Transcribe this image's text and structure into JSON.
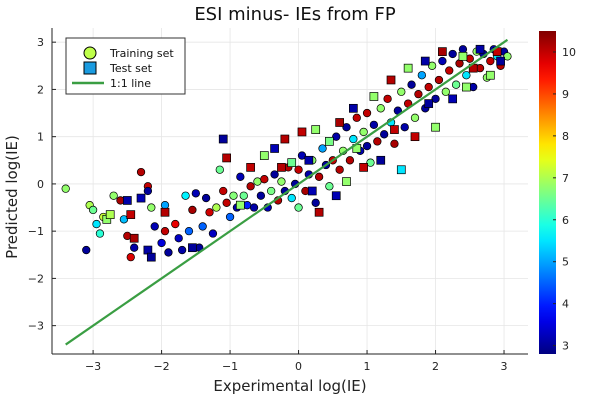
{
  "chart_data": {
    "type": "scatter",
    "title": "ESI minus- IEs from FP",
    "xlabel": "Experimental log(IE)",
    "ylabel": "Predicted log(IE)",
    "xlim": [
      -3.6,
      3.35
    ],
    "ylim": [
      -3.6,
      3.3
    ],
    "xticks": [
      -3,
      -2,
      -1,
      0,
      1,
      2,
      3
    ],
    "yticks": [
      -3,
      -2,
      -1,
      0,
      1,
      2,
      3
    ],
    "grid": true,
    "legend_position": "top-left",
    "colorbar": {
      "min": 2.8,
      "max": 10.5,
      "ticks": [
        3,
        4,
        5,
        6,
        7,
        8,
        9,
        10
      ],
      "colormap": "jet"
    },
    "series": [
      {
        "name": "Training set",
        "marker": "circle",
        "points": [
          [
            -3.4,
            -0.1,
            6.8
          ],
          [
            -3.05,
            -0.45,
            7.0
          ],
          [
            -3.0,
            -0.55,
            6.5
          ],
          [
            -2.95,
            -0.85,
            5.5
          ],
          [
            -2.9,
            -1.05,
            6.0
          ],
          [
            -2.85,
            -0.7,
            7.2
          ],
          [
            -3.1,
            -1.4,
            3.0
          ],
          [
            -2.7,
            -0.25,
            6.8
          ],
          [
            -2.6,
            -0.35,
            10.2
          ],
          [
            -2.55,
            -0.75,
            5.2
          ],
          [
            -2.5,
            -1.1,
            10.1
          ],
          [
            -2.45,
            -1.55,
            9.8
          ],
          [
            -2.4,
            -1.35,
            3.1
          ],
          [
            -2.3,
            0.25,
            10.1
          ],
          [
            -2.2,
            -0.05,
            10.0
          ],
          [
            -2.2,
            -0.15,
            3.0
          ],
          [
            -2.15,
            -0.5,
            6.8
          ],
          [
            -2.1,
            -0.9,
            3.2
          ],
          [
            -2.0,
            -1.25,
            3.5
          ],
          [
            -1.95,
            -0.45,
            5.0
          ],
          [
            -1.95,
            -1.0,
            10.0
          ],
          [
            -1.9,
            -1.45,
            3.0
          ],
          [
            -1.8,
            -0.85,
            9.7
          ],
          [
            -1.75,
            -1.15,
            3.3
          ],
          [
            -1.7,
            -1.4,
            3.1
          ],
          [
            -1.65,
            -0.25,
            5.6
          ],
          [
            -1.6,
            -1.0,
            4.5
          ],
          [
            -1.55,
            -0.55,
            10.2
          ],
          [
            -1.5,
            -0.2,
            3.2
          ],
          [
            -1.45,
            -1.35,
            3.0
          ],
          [
            -1.4,
            -0.9,
            4.5
          ],
          [
            -1.35,
            -0.3,
            3.0
          ],
          [
            -1.3,
            -0.6,
            9.9
          ],
          [
            -1.25,
            -1.05,
            3.3
          ],
          [
            -1.2,
            -0.5,
            7.0
          ],
          [
            -1.15,
            0.3,
            6.5
          ],
          [
            -1.1,
            -0.15,
            10.0
          ],
          [
            -1.05,
            -0.4,
            10.0
          ],
          [
            -1.0,
            -0.7,
            4.5
          ],
          [
            -0.95,
            -0.25,
            6.7
          ],
          [
            -0.9,
            -0.5,
            3.1
          ],
          [
            -0.85,
            0.15,
            3.2
          ],
          [
            -0.8,
            -0.25,
            6.5
          ],
          [
            -0.75,
            -0.45,
            4.0
          ],
          [
            -0.7,
            -0.05,
            10.1
          ],
          [
            -0.65,
            -0.5,
            3.1
          ],
          [
            -0.6,
            0.05,
            6.8
          ],
          [
            -0.55,
            -0.25,
            3.0
          ],
          [
            -0.5,
            0.1,
            10.0
          ],
          [
            -0.45,
            -0.5,
            3.2
          ],
          [
            -0.4,
            -0.15,
            6.6
          ],
          [
            -0.35,
            0.2,
            3.0
          ],
          [
            -0.3,
            -0.35,
            10.1
          ],
          [
            -0.25,
            0.05,
            6.8
          ],
          [
            -0.2,
            -0.15,
            3.0
          ],
          [
            -0.15,
            0.35,
            10.1
          ],
          [
            -0.1,
            -0.3,
            5.5
          ],
          [
            -0.05,
            0.0,
            3.0
          ],
          [
            0.0,
            0.3,
            10.0
          ],
          [
            0.0,
            -0.5,
            6.5
          ],
          [
            0.05,
            0.6,
            3.2
          ],
          [
            0.1,
            -0.15,
            10.2
          ],
          [
            0.15,
            0.2,
            3.1
          ],
          [
            0.2,
            0.5,
            6.8
          ],
          [
            0.25,
            -0.4,
            3.0
          ],
          [
            0.3,
            0.15,
            10.1
          ],
          [
            0.35,
            0.75,
            5.0
          ],
          [
            0.4,
            0.4,
            3.0
          ],
          [
            0.45,
            -0.05,
            6.5
          ],
          [
            0.5,
            0.5,
            10.0
          ],
          [
            0.55,
            1.0,
            3.1
          ],
          [
            0.6,
            0.3,
            10.1
          ],
          [
            0.65,
            0.7,
            6.8
          ],
          [
            0.7,
            1.2,
            3.0
          ],
          [
            0.75,
            0.5,
            10.1
          ],
          [
            0.8,
            0.95,
            5.5
          ],
          [
            0.85,
            1.4,
            10.0
          ],
          [
            0.9,
            0.7,
            3.2
          ],
          [
            0.95,
            1.1,
            6.8
          ],
          [
            1.0,
            0.8,
            3.0
          ],
          [
            1.0,
            1.5,
            10.0
          ],
          [
            1.05,
            0.45,
            6.5
          ],
          [
            1.1,
            1.25,
            3.1
          ],
          [
            1.15,
            0.9,
            10.1
          ],
          [
            1.2,
            1.6,
            6.8
          ],
          [
            1.25,
            1.05,
            3.0
          ],
          [
            1.3,
            1.8,
            10.0
          ],
          [
            1.35,
            1.3,
            5.5
          ],
          [
            1.4,
            0.85,
            10.2
          ],
          [
            1.45,
            1.55,
            3.0
          ],
          [
            1.5,
            1.95,
            6.8
          ],
          [
            1.55,
            1.2,
            3.1
          ],
          [
            1.6,
            1.7,
            10.0
          ],
          [
            1.65,
            2.1,
            3.0
          ],
          [
            1.7,
            1.4,
            6.8
          ],
          [
            1.75,
            1.9,
            10.1
          ],
          [
            1.8,
            2.3,
            5.0
          ],
          [
            1.85,
            1.6,
            3.0
          ],
          [
            1.9,
            2.05,
            10.0
          ],
          [
            1.95,
            2.5,
            6.8
          ],
          [
            2.0,
            1.8,
            3.0
          ],
          [
            2.05,
            2.2,
            10.1
          ],
          [
            2.1,
            2.6,
            3.2
          ],
          [
            2.15,
            1.95,
            6.8
          ],
          [
            2.2,
            2.4,
            10.0
          ],
          [
            2.25,
            2.75,
            3.0
          ],
          [
            2.3,
            2.1,
            6.5
          ],
          [
            2.35,
            2.55,
            10.2
          ],
          [
            2.4,
            2.85,
            3.0
          ],
          [
            2.45,
            2.3,
            5.5
          ],
          [
            2.5,
            2.65,
            10.0
          ],
          [
            2.55,
            2.05,
            3.1
          ],
          [
            2.6,
            2.8,
            6.8
          ],
          [
            2.65,
            2.45,
            10.1
          ],
          [
            2.7,
            2.75,
            3.0
          ],
          [
            2.75,
            2.25,
            6.8
          ],
          [
            2.8,
            2.6,
            10.0
          ],
          [
            2.85,
            2.85,
            3.1
          ],
          [
            2.9,
            2.7,
            5.5
          ],
          [
            2.95,
            2.5,
            10.1
          ],
          [
            3.0,
            2.8,
            3.0
          ],
          [
            3.05,
            2.7,
            6.8
          ]
        ]
      },
      {
        "name": "Test set",
        "marker": "square",
        "points": [
          [
            -2.8,
            -0.75,
            6.8
          ],
          [
            -2.75,
            -0.65,
            7.0
          ],
          [
            -2.5,
            -0.35,
            3.1
          ],
          [
            -2.45,
            -0.65,
            10.0
          ],
          [
            -2.4,
            -1.15,
            10.2
          ],
          [
            -2.3,
            -0.3,
            3.2
          ],
          [
            -2.2,
            -1.4,
            3.1
          ],
          [
            -2.15,
            -1.55,
            3.0
          ],
          [
            -1.1,
            0.95,
            3.0
          ],
          [
            -1.05,
            0.55,
            10.1
          ],
          [
            -0.85,
            -0.45,
            6.8
          ],
          [
            -0.7,
            0.35,
            10.0
          ],
          [
            -0.5,
            0.6,
            6.8
          ],
          [
            -0.35,
            0.75,
            3.2
          ],
          [
            -0.2,
            0.95,
            10.1
          ],
          [
            -0.1,
            0.45,
            6.5
          ],
          [
            0.05,
            1.1,
            10.0
          ],
          [
            0.15,
            0.5,
            3.1
          ],
          [
            0.25,
            1.15,
            6.8
          ],
          [
            0.3,
            -0.6,
            10.1
          ],
          [
            0.45,
            0.9,
            6.6
          ],
          [
            0.55,
            -0.25,
            3.2
          ],
          [
            0.6,
            1.3,
            10.2
          ],
          [
            0.7,
            0.05,
            6.8
          ],
          [
            0.8,
            1.6,
            3.1
          ],
          [
            0.95,
            0.35,
            10.0
          ],
          [
            1.1,
            1.85,
            6.8
          ],
          [
            1.2,
            0.5,
            3.0
          ],
          [
            1.35,
            2.2,
            10.1
          ],
          [
            1.5,
            0.3,
            5.5
          ],
          [
            1.6,
            2.45,
            6.8
          ],
          [
            1.7,
            1.0,
            10.0
          ],
          [
            1.85,
            2.6,
            3.1
          ],
          [
            2.0,
            1.2,
            6.8
          ],
          [
            2.1,
            2.8,
            10.2
          ],
          [
            2.25,
            1.8,
            3.2
          ],
          [
            2.4,
            2.7,
            6.8
          ],
          [
            2.55,
            2.45,
            10.1
          ],
          [
            2.65,
            2.85,
            3.1
          ],
          [
            2.8,
            2.3,
            6.8
          ],
          [
            2.9,
            2.8,
            10.0
          ],
          [
            2.95,
            2.6,
            3.0
          ],
          [
            -0.25,
            0.35,
            10.1
          ],
          [
            0.2,
            -0.15,
            3.2
          ],
          [
            0.85,
            0.75,
            6.8
          ],
          [
            1.4,
            1.15,
            10.0
          ],
          [
            1.9,
            1.7,
            3.0
          ],
          [
            2.45,
            2.05,
            6.8
          ],
          [
            -1.95,
            -0.6,
            10.1
          ],
          [
            -1.55,
            -1.35,
            3.0
          ]
        ]
      },
      {
        "name": "1:1 line",
        "type": "line",
        "color": "#3a9e43",
        "x": [
          -3.4,
          3.05
        ],
        "y": [
          -3.4,
          3.05
        ]
      }
    ]
  }
}
